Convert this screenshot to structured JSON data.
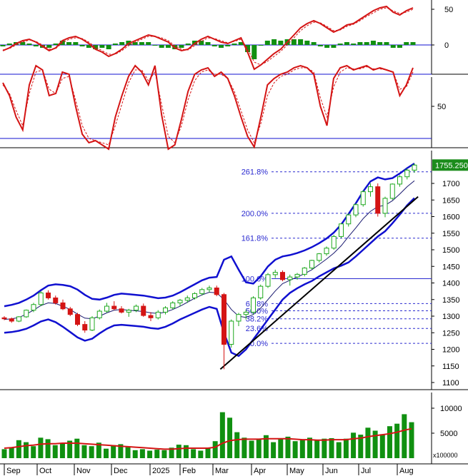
{
  "chart_data": {
    "type": "candlestick",
    "x": {
      "labels": [
        "Sep",
        "Oct",
        "Nov",
        "Dec",
        "2025",
        "Feb",
        "Mar",
        "Apr",
        "May",
        "Jun",
        "Jul",
        "Aug"
      ]
    },
    "colors": {
      "up": "#1fa81f",
      "down": "#d41414",
      "band": "#1010d0",
      "indicator": "#d41414",
      "volume": "#109010",
      "trendline": "#000000",
      "fib": "#2a2ad0"
    },
    "macd_panel": {
      "yticks": [
        "50",
        "0"
      ],
      "series": [
        {
          "values": [
            -8,
            -4,
            2,
            6,
            8,
            4,
            -2,
            -8,
            -4,
            6,
            10,
            12,
            8,
            2,
            -6,
            -10,
            -16,
            -12,
            -6,
            2,
            6,
            10,
            14,
            12,
            8,
            4,
            -4,
            -8,
            -6,
            2,
            8,
            12,
            8,
            4,
            2,
            6,
            10,
            -10,
            -34,
            -28,
            -20,
            -12,
            -6,
            4,
            14,
            24,
            30,
            34,
            30,
            24,
            18,
            22,
            28,
            30,
            36,
            42,
            48,
            52,
            54,
            46,
            42,
            48,
            52
          ]
        },
        {
          "values": [
            -7,
            -5,
            0,
            4,
            7,
            5,
            0,
            -6,
            -5,
            3,
            8,
            10,
            9,
            4,
            -3,
            -8,
            -13,
            -13,
            -8,
            -1,
            4,
            8,
            12,
            12,
            10,
            6,
            -1,
            -6,
            -7,
            -1,
            5,
            10,
            9,
            6,
            3,
            5,
            8,
            -5,
            -24,
            -28,
            -23,
            -16,
            -9,
            0,
            10,
            20,
            27,
            32,
            31,
            26,
            20,
            21,
            26,
            29,
            34,
            40,
            45,
            50,
            52,
            48,
            44,
            46,
            50
          ]
        }
      ],
      "histogram": [
        -1,
        1,
        2,
        2,
        1,
        -1,
        -2,
        -2,
        1,
        3,
        2,
        2,
        -1,
        -2,
        -3,
        -2,
        -3,
        1,
        2,
        3,
        2,
        2,
        2,
        0,
        -2,
        -2,
        -3,
        -2,
        1,
        3,
        3,
        2,
        -1,
        -2,
        -1,
        1,
        2,
        -5,
        -10,
        0,
        3,
        4,
        3,
        4,
        4,
        4,
        3,
        2,
        -1,
        -2,
        -2,
        1,
        2,
        1,
        2,
        2,
        3,
        2,
        2,
        -2,
        -2,
        2,
        2
      ]
    },
    "stoch_panel": {
      "yticks": [
        "50"
      ],
      "levels": [
        80,
        20
      ],
      "series": [
        {
          "values": [
            72,
            60,
            40,
            28,
            70,
            88,
            84,
            60,
            62,
            82,
            80,
            50,
            24,
            16,
            18,
            14,
            10,
            40,
            60,
            78,
            88,
            82,
            70,
            88,
            42,
            10,
            14,
            38,
            64,
            80,
            84,
            86,
            78,
            82,
            76,
            60,
            40,
            22,
            12,
            40,
            70,
            76,
            80,
            82,
            86,
            88,
            86,
            80,
            50,
            32,
            76,
            86,
            88,
            84,
            86,
            88,
            84,
            86,
            84,
            82,
            60,
            70,
            86
          ]
        },
        {
          "values": [
            70,
            62,
            46,
            32,
            62,
            82,
            84,
            66,
            62,
            76,
            78,
            56,
            32,
            20,
            18,
            16,
            14,
            32,
            52,
            72,
            84,
            84,
            74,
            82,
            52,
            22,
            16,
            32,
            56,
            74,
            82,
            84,
            80,
            80,
            76,
            64,
            46,
            28,
            16,
            34,
            60,
            72,
            78,
            80,
            84,
            86,
            86,
            82,
            58,
            40,
            68,
            82,
            86,
            85,
            85,
            87,
            85,
            85,
            84,
            82,
            66,
            68,
            82
          ]
        }
      ]
    },
    "price_panel": {
      "yticks": [
        1100,
        1150,
        1200,
        1250,
        1300,
        1350,
        1400,
        1450,
        1500,
        1550,
        1600,
        1650,
        1700
      ],
      "ylim": [
        1075,
        1780
      ],
      "last_price_label": "1755.250",
      "last_price": 1755.25,
      "candles": [
        [
          1295,
          1300,
          1288,
          1292
        ],
        [
          1292,
          1296,
          1280,
          1285
        ],
        [
          1285,
          1300,
          1282,
          1298
        ],
        [
          1298,
          1320,
          1295,
          1318
        ],
        [
          1318,
          1340,
          1312,
          1335
        ],
        [
          1335,
          1375,
          1330,
          1370
        ],
        [
          1370,
          1378,
          1350,
          1355
        ],
        [
          1355,
          1362,
          1335,
          1340
        ],
        [
          1340,
          1350,
          1318,
          1322
        ],
        [
          1322,
          1328,
          1300,
          1305
        ],
        [
          1305,
          1310,
          1270,
          1275
        ],
        [
          1275,
          1285,
          1250,
          1258
        ],
        [
          1258,
          1300,
          1255,
          1295
        ],
        [
          1295,
          1320,
          1290,
          1315
        ],
        [
          1315,
          1340,
          1310,
          1330
        ],
        [
          1330,
          1345,
          1318,
          1322
        ],
        [
          1322,
          1330,
          1308,
          1312
        ],
        [
          1312,
          1322,
          1298,
          1318
        ],
        [
          1318,
          1335,
          1312,
          1330
        ],
        [
          1330,
          1338,
          1298,
          1302
        ],
        [
          1302,
          1312,
          1285,
          1295
        ],
        [
          1295,
          1318,
          1290,
          1312
        ],
        [
          1312,
          1330,
          1305,
          1325
        ],
        [
          1325,
          1345,
          1320,
          1340
        ],
        [
          1340,
          1352,
          1330,
          1348
        ],
        [
          1348,
          1362,
          1340,
          1355
        ],
        [
          1355,
          1372,
          1350,
          1368
        ],
        [
          1368,
          1385,
          1362,
          1380
        ],
        [
          1380,
          1392,
          1372,
          1385
        ],
        [
          1385,
          1392,
          1360,
          1365
        ],
        [
          1365,
          1370,
          1140,
          1215
        ],
        [
          1215,
          1290,
          1205,
          1285
        ],
        [
          1285,
          1310,
          1270,
          1305
        ],
        [
          1305,
          1320,
          1290,
          1312
        ],
        [
          1312,
          1360,
          1305,
          1355
        ],
        [
          1355,
          1395,
          1350,
          1390
        ],
        [
          1390,
          1430,
          1385,
          1425
        ],
        [
          1425,
          1440,
          1415,
          1432
        ],
        [
          1432,
          1438,
          1405,
          1410
        ],
        [
          1410,
          1425,
          1392,
          1418
        ],
        [
          1418,
          1430,
          1410,
          1426
        ],
        [
          1426,
          1448,
          1420,
          1445
        ],
        [
          1445,
          1470,
          1440,
          1468
        ],
        [
          1468,
          1490,
          1462,
          1488
        ],
        [
          1488,
          1510,
          1482,
          1505
        ],
        [
          1505,
          1545,
          1500,
          1540
        ],
        [
          1540,
          1580,
          1535,
          1578
        ],
        [
          1578,
          1610,
          1570,
          1605
        ],
        [
          1605,
          1640,
          1598,
          1636
        ],
        [
          1636,
          1680,
          1630,
          1675
        ],
        [
          1675,
          1700,
          1660,
          1690
        ],
        [
          1690,
          1700,
          1600,
          1610
        ],
        [
          1610,
          1660,
          1598,
          1655
        ],
        [
          1655,
          1700,
          1650,
          1698
        ],
        [
          1698,
          1725,
          1690,
          1720
        ],
        [
          1720,
          1745,
          1712,
          1740
        ],
        [
          1740,
          1760,
          1732,
          1755.25
        ]
      ],
      "ma": [
        1290,
        1292,
        1296,
        1306,
        1318,
        1332,
        1340,
        1338,
        1330,
        1320,
        1306,
        1294,
        1292,
        1300,
        1310,
        1318,
        1320,
        1318,
        1316,
        1314,
        1310,
        1308,
        1312,
        1320,
        1330,
        1342,
        1354,
        1364,
        1372,
        1370,
        1350,
        1320,
        1300,
        1296,
        1305,
        1324,
        1350,
        1376,
        1398,
        1408,
        1418,
        1428,
        1440,
        1456,
        1472,
        1490,
        1512,
        1540,
        1566,
        1594,
        1616,
        1630,
        1634,
        1648,
        1668,
        1690,
        1708
      ],
      "upper_band": [
        1330,
        1334,
        1340,
        1350,
        1362,
        1378,
        1392,
        1396,
        1394,
        1390,
        1380,
        1364,
        1352,
        1350,
        1356,
        1364,
        1368,
        1366,
        1364,
        1362,
        1358,
        1354,
        1356,
        1362,
        1372,
        1384,
        1396,
        1408,
        1416,
        1418,
        1470,
        1480,
        1440,
        1402,
        1398,
        1420,
        1450,
        1470,
        1480,
        1484,
        1490,
        1498,
        1508,
        1520,
        1534,
        1552,
        1576,
        1608,
        1640,
        1676,
        1706,
        1718,
        1712,
        1716,
        1730,
        1746,
        1760
      ],
      "lower_band": [
        1250,
        1252,
        1256,
        1262,
        1272,
        1284,
        1290,
        1282,
        1268,
        1252,
        1236,
        1226,
        1232,
        1248,
        1262,
        1272,
        1274,
        1272,
        1270,
        1268,
        1264,
        1262,
        1268,
        1278,
        1290,
        1300,
        1310,
        1320,
        1328,
        1322,
        1250,
        1190,
        1180,
        1200,
        1230,
        1260,
        1290,
        1320,
        1350,
        1370,
        1384,
        1396,
        1406,
        1420,
        1432,
        1444,
        1452,
        1462,
        1480,
        1500,
        1520,
        1540,
        1556,
        1580,
        1606,
        1634,
        1656
      ]
    },
    "fibonacci": [
      {
        "label": "261.8%",
        "value": 1735
      },
      {
        "label": "200.0%",
        "value": 1610
      },
      {
        "label": "161.8%",
        "value": 1535
      },
      {
        "label": "100.0%",
        "value": 1413
      },
      {
        "label": "61.8%",
        "value": 1338
      },
      {
        "label": "50.0%",
        "value": 1316
      },
      {
        "label": "38.2%",
        "value": 1292
      },
      {
        "label": "23.6%",
        "value": 1263
      },
      {
        "label": "0.0%",
        "value": 1218
      }
    ],
    "trendline": {
      "from": [
        29.5,
        1140
      ],
      "to": [
        56.5,
        1660
      ]
    },
    "volume_panel": {
      "yticks": [
        "10000",
        "5000"
      ],
      "unit_label": "x100000",
      "ylim": [
        0,
        12000
      ],
      "values": [
        1800,
        2100,
        3600,
        3200,
        2400,
        4100,
        3800,
        2600,
        3000,
        3500,
        3900,
        2600,
        2400,
        3100,
        1900,
        2600,
        2800,
        2200,
        1600,
        1800,
        1500,
        1700,
        1600,
        2100,
        2700,
        2600,
        1800,
        1500,
        2000,
        3400,
        9200,
        8100,
        5200,
        4100,
        3500,
        3800,
        4600,
        3200,
        3900,
        4300,
        3400,
        3600,
        4100,
        3500,
        3900,
        4000,
        3200,
        3900,
        5100,
        4700,
        6100,
        5500,
        4800,
        6400,
        6900,
        8800,
        7200
      ],
      "ma_values": [
        2000,
        2100,
        2300,
        2500,
        2600,
        2800,
        2900,
        2900,
        3000,
        3000,
        3000,
        2900,
        2800,
        2700,
        2600,
        2500,
        2400,
        2300,
        2200,
        2100,
        2000,
        1900,
        1800,
        1800,
        1900,
        2000,
        2000,
        2000,
        2000,
        2200,
        3000,
        3500,
        3700,
        3800,
        3800,
        3800,
        3900,
        3900,
        3900,
        3900,
        3800,
        3700,
        3700,
        3600,
        3600,
        3700,
        3700,
        3700,
        3900,
        4000,
        4300,
        4500,
        4700,
        4900,
        5200,
        5600,
        5900
      ]
    }
  }
}
